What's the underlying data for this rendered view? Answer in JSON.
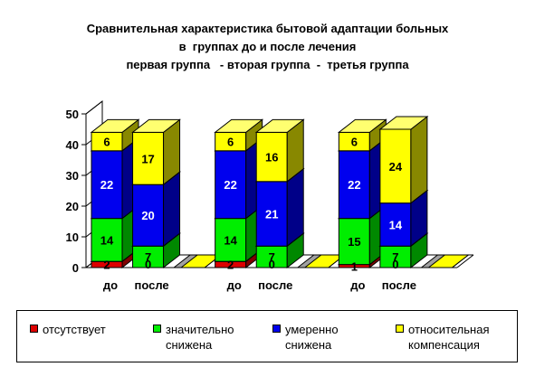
{
  "title": {
    "line1": "Сравнительная характеристика бытовой адаптации больных",
    "line2": "в  группах до и после лечения",
    "line3": "первая группа   - вторая группа  -  третья группа"
  },
  "legend": {
    "absent": "отсутствует",
    "significant_line1": "значительно",
    "significant_line2": "снижена",
    "moderate_line1": "умеренно",
    "moderate_line2": "снижена",
    "relative_line1": "относительная",
    "relative_line2": "компенсация"
  },
  "colors": {
    "absent": "#dd0000",
    "significant": "#00ee00",
    "moderate": "#0000ee",
    "relative": "#ffff00",
    "gray_floor": "#a0a0a0"
  },
  "chart_data": {
    "type": "bar",
    "stacked": true,
    "three_d": true,
    "ylim": [
      0,
      50
    ],
    "yticks": [
      0,
      10,
      20,
      30,
      40,
      50
    ],
    "categories": [
      "до",
      "после",
      "",
      "до",
      "после",
      "",
      "до",
      "после",
      ""
    ],
    "series": [
      {
        "name": "отсутствует",
        "values": [
          2,
          0,
          0,
          2,
          0,
          0,
          1,
          0,
          0
        ]
      },
      {
        "name": "значительно снижена",
        "values": [
          14,
          7,
          0,
          14,
          7,
          0,
          15,
          7,
          0
        ]
      },
      {
        "name": "умеренно снижена",
        "values": [
          22,
          20,
          0,
          22,
          21,
          0,
          22,
          14,
          0
        ]
      },
      {
        "name": "относительная компенсация",
        "values": [
          6,
          17,
          0,
          6,
          16,
          0,
          6,
          24,
          0
        ]
      }
    ],
    "grid": false,
    "legend_position": "bottom"
  }
}
